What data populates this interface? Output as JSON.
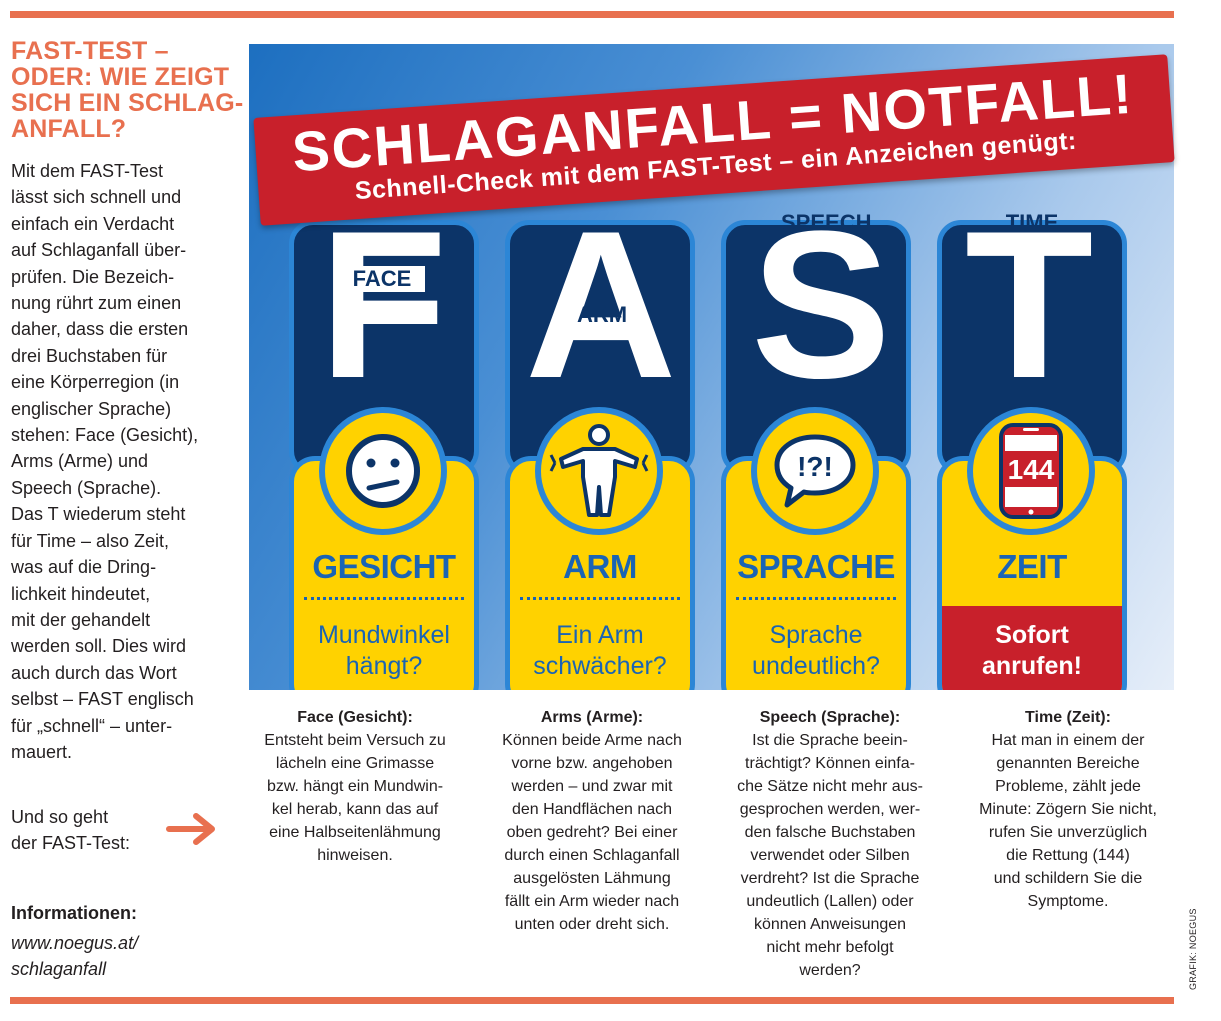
{
  "sidebar": {
    "title_lines": [
      "FAST-TEST –",
      "ODER: WIE ZEIGT",
      "SICH EIN SCHLAG-",
      "ANFALL?"
    ],
    "body_lines": [
      "Mit dem FAST-Test",
      "lässt sich schnell und",
      "einfach ein Verdacht",
      "auf Schlaganfall über-",
      "prüfen. Die Bezeich-",
      "nung rührt zum einen",
      "daher, dass die ersten",
      "drei Buchstaben für",
      "eine Körperregion (in",
      "englischer Sprache)",
      "stehen: Face (Gesicht),",
      "Arms (Arme) und",
      "Speech (Sprache).",
      "Das T wiederum steht",
      "für Time – also Zeit,",
      "was auf die Dring-",
      "lichkeit hindeutet,",
      "mit der gehandelt",
      "werden soll. Dies wird",
      "auch durch das Wort",
      "selbst – FAST englisch",
      "für „schnell“ – unter-",
      "mauert."
    ],
    "howto_lines": [
      "Und so geht",
      "der FAST-Test:"
    ],
    "info_label": "Informationen:",
    "info_link_lines": [
      "www.noegus.at/",
      "schlaganfall"
    ]
  },
  "banner": {
    "title": "SCHLAGANFALL = NOTFALL!",
    "subtitle": "Schnell-Check mit dem FAST-Test – ein Anzeichen genügt:"
  },
  "cards": [
    {
      "letter": "F",
      "tag": "FACE",
      "icon": "face-icon",
      "label": "GESICHT",
      "question_lines": [
        "Mundwinkel",
        "hängt?"
      ]
    },
    {
      "letter": "A",
      "tag": "ARM",
      "icon": "person-arms-icon",
      "label": "ARM",
      "question_lines": [
        "Ein Arm",
        "schwächer?"
      ]
    },
    {
      "letter": "S",
      "tag": "SPEECH",
      "icon": "speech-bubble-icon",
      "bubble_text": "!?!",
      "label": "SPRACHE",
      "question_lines": [
        "Sprache",
        "undeutlich?"
      ]
    },
    {
      "letter": "T",
      "tag": "TIME",
      "icon": "phone-icon",
      "phone_number": "144",
      "label": "ZEIT",
      "question_lines": [
        "Sofort",
        "anrufen!"
      ]
    }
  ],
  "descriptions": [
    {
      "heading": "Face (Gesicht):",
      "lines": [
        "Entsteht beim Versuch zu",
        "lächeln eine Grimasse",
        "bzw. hängt ein Mundwin-",
        "kel herab, kann das auf",
        "eine Halbseitenlähmung",
        "hinweisen."
      ]
    },
    {
      "heading": "Arms (Arme):",
      "lines": [
        "Können beide Arme nach",
        "vorne bzw. angehoben",
        "werden – und zwar mit",
        "den Handflächen nach",
        "oben gedreht? Bei einer",
        "durch einen Schlaganfall",
        "ausgelösten Lähmung",
        "fällt ein Arm wieder nach",
        "unten oder dreht sich."
      ]
    },
    {
      "heading": "Speech (Sprache):",
      "lines": [
        "Ist die Sprache beein-",
        "trächtigt? Können einfa-",
        "che Sätze nicht mehr aus-",
        "gesprochen werden, wer-",
        "den falsche Buchstaben",
        "verwendet oder Silben",
        "verdreht? Ist die Sprache",
        "undeutlich (Lallen) oder",
        "können Anweisungen",
        "nicht mehr befolgt",
        "werden?"
      ]
    },
    {
      "heading": "Time (Zeit):",
      "lines": [
        "Hat man in einem der",
        "genannten Bereiche",
        "Probleme, zählt jede",
        "Minute: Zögern Sie nicht,",
        "rufen Sie unverzüglich",
        "die Rettung (144)",
        "und schildern Sie die",
        "Symptome."
      ]
    }
  ],
  "credit": "GRAFIK: NOEGUS",
  "colors": {
    "accent": "#e8704f",
    "navy": "#0c3468",
    "blue": "#2c86d6",
    "yellow": "#ffd200",
    "red": "#c8202b"
  }
}
